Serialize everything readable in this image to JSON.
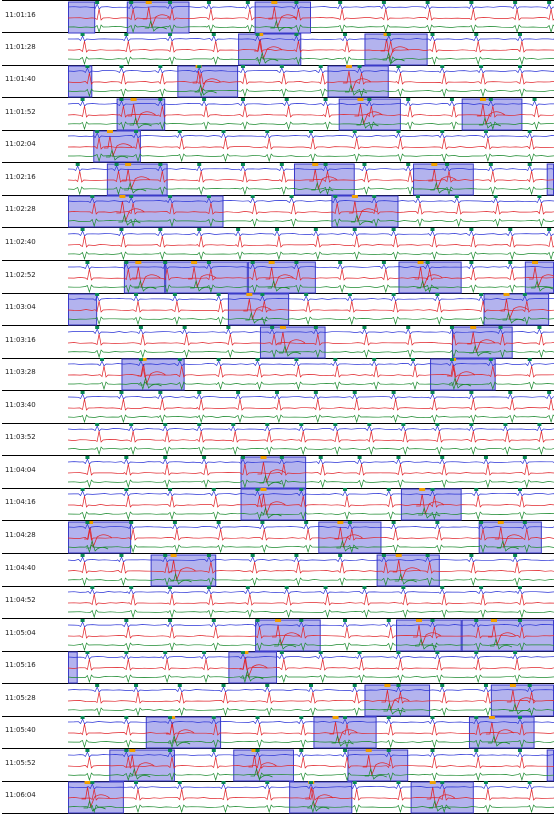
{
  "colors": {
    "lead_top": "#2a33d6",
    "lead_mid": "#e0262c",
    "lead_bottom": "#1b8a2e",
    "beat_marker": "#0a8a55",
    "event_marker": "#f2a200",
    "event_fill": "#b3b3ee",
    "event_border": "#3a3ac8",
    "grid_line": "#000000"
  },
  "icons": {
    "beat_marker": "beat-marker-icon",
    "event_marker": "event-marker-icon"
  },
  "strips": [
    {
      "time": "11:01:16",
      "events": [
        [
          0,
          0.056
        ],
        [
          0.121,
          0.25
        ],
        [
          0.384,
          0.5
        ]
      ],
      "beats": [
        0.06,
        0.13,
        0.21,
        0.29,
        0.37,
        0.47,
        0.56,
        0.65,
        0.74,
        0.83,
        0.92,
        0.99
      ]
    },
    {
      "time": "11:01:28",
      "events": [
        [
          0.35,
          0.48
        ],
        [
          0.61,
          0.74
        ]
      ],
      "beats": [
        0.03,
        0.12,
        0.21,
        0.3,
        0.39,
        0.47,
        0.57,
        0.66,
        0.75,
        0.84,
        0.93
      ]
    },
    {
      "time": "11:01:40",
      "events": [
        [
          0,
          0.05
        ],
        [
          0.225,
          0.35
        ],
        [
          0.534,
          0.66
        ]
      ],
      "beats": [
        0.04,
        0.11,
        0.19,
        0.27,
        0.36,
        0.44,
        0.52,
        0.6,
        0.68,
        0.77,
        0.85,
        0.93
      ]
    },
    {
      "time": "11:01:52",
      "events": [
        [
          0.1,
          0.2
        ],
        [
          0.557,
          0.685
        ],
        [
          0.81,
          0.935
        ]
      ],
      "beats": [
        0.03,
        0.11,
        0.19,
        0.28,
        0.36,
        0.45,
        0.53,
        0.62,
        0.7,
        0.79,
        0.87,
        0.96
      ]
    },
    {
      "time": "11:02:04",
      "events": [
        [
          0.052,
          0.15
        ]
      ],
      "beats": [
        0.06,
        0.14,
        0.23,
        0.32,
        0.41,
        0.5,
        0.59,
        0.68,
        0.77,
        0.86,
        0.95
      ]
    },
    {
      "time": "11:02:16",
      "events": [
        [
          0.08,
          0.205
        ],
        [
          0.465,
          0.59
        ],
        [
          0.71,
          0.835
        ],
        [
          0.985,
          1
        ]
      ],
      "beats": [
        0.02,
        0.1,
        0.19,
        0.27,
        0.36,
        0.44,
        0.53,
        0.61,
        0.7,
        0.78,
        0.87,
        0.95
      ]
    },
    {
      "time": "11:02:28",
      "events": [
        [
          0,
          0.32
        ],
        [
          0.542,
          0.68
        ]
      ],
      "beats": [
        0.05,
        0.13,
        0.21,
        0.29,
        0.38,
        0.46,
        0.55,
        0.63,
        0.72,
        0.8,
        0.88,
        0.97
      ]
    },
    {
      "time": "11:02:40",
      "events": [],
      "beats": [
        0.03,
        0.11,
        0.19,
        0.27,
        0.35,
        0.43,
        0.51,
        0.59,
        0.67,
        0.75,
        0.83,
        0.91,
        0.99
      ]
    },
    {
      "time": "11:02:52",
      "events": [
        [
          0.115,
          0.2
        ],
        [
          0.2,
          0.37
        ],
        [
          0.37,
          0.51
        ],
        [
          0.68,
          0.81
        ],
        [
          0.94,
          1
        ]
      ],
      "beats": [
        0.04,
        0.12,
        0.2,
        0.29,
        0.38,
        0.47,
        0.56,
        0.65,
        0.74,
        0.83,
        0.91
      ]
    },
    {
      "time": "11:03:04",
      "events": [
        [
          0,
          0.06
        ],
        [
          0.329,
          0.455
        ],
        [
          0.855,
          0.99
        ]
      ],
      "beats": [
        0.06,
        0.14,
        0.22,
        0.31,
        0.4,
        0.49,
        0.58,
        0.67,
        0.76,
        0.85,
        0.94
      ]
    },
    {
      "time": "11:03:16",
      "events": [
        [
          0.395,
          0.53
        ],
        [
          0.79,
          0.915
        ]
      ],
      "beats": [
        0.06,
        0.15,
        0.24,
        0.33,
        0.42,
        0.51,
        0.61,
        0.7,
        0.79,
        0.89,
        0.97
      ]
    },
    {
      "time": "11:03:28",
      "events": [
        [
          0.11,
          0.24
        ],
        [
          0.745,
          0.88
        ]
      ],
      "beats": [
        0.07,
        0.15,
        0.23,
        0.31,
        0.39,
        0.47,
        0.55,
        0.63,
        0.71,
        0.79,
        0.87,
        0.95
      ]
    },
    {
      "time": "11:03:40",
      "events": [],
      "beats": [
        0.03,
        0.11,
        0.19,
        0.27,
        0.35,
        0.43,
        0.51,
        0.59,
        0.67,
        0.75,
        0.83,
        0.91,
        0.99
      ]
    },
    {
      "time": "11:03:52",
      "events": [],
      "beats": [
        0.06,
        0.13,
        0.2,
        0.27,
        0.34,
        0.41,
        0.48,
        0.55,
        0.62,
        0.69,
        0.76,
        0.83,
        0.9,
        0.97
      ]
    },
    {
      "time": "11:04:04",
      "events": [
        [
          0.355,
          0.49
        ]
      ],
      "beats": [
        0.04,
        0.12,
        0.2,
        0.28,
        0.36,
        0.44,
        0.52,
        0.6,
        0.68,
        0.77,
        0.86,
        0.94
      ]
    },
    {
      "time": "11:04:16",
      "events": [
        [
          0.355,
          0.49
        ],
        [
          0.685,
          0.81
        ]
      ],
      "beats": [
        0.03,
        0.12,
        0.21,
        0.3,
        0.39,
        0.48,
        0.57,
        0.66,
        0.75,
        0.84,
        0.93
      ]
    },
    {
      "time": "11:04:28",
      "events": [
        [
          0,
          0.13
        ],
        [
          0.515,
          0.645
        ],
        [
          0.845,
          0.975
        ]
      ],
      "beats": [
        0.04,
        0.13,
        0.22,
        0.31,
        0.4,
        0.49,
        0.58,
        0.67,
        0.76,
        0.85,
        0.94
      ]
    },
    {
      "time": "11:04:40",
      "events": [
        [
          0.17,
          0.305
        ],
        [
          0.635,
          0.765
        ]
      ],
      "beats": [
        0.03,
        0.11,
        0.2,
        0.29,
        0.38,
        0.47,
        0.56,
        0.65,
        0.74,
        0.83,
        0.92
      ]
    },
    {
      "time": "11:04:52",
      "events": [],
      "beats": [
        0.05,
        0.13,
        0.21,
        0.29,
        0.37,
        0.45,
        0.53,
        0.61,
        0.69,
        0.77,
        0.85,
        0.93
      ]
    },
    {
      "time": "11:05:04",
      "events": [
        [
          0.385,
          0.52
        ],
        [
          0.675,
          0.81
        ],
        [
          0.81,
          1
        ]
      ],
      "beats": [
        0.03,
        0.12,
        0.21,
        0.3,
        0.39,
        0.48,
        0.57,
        0.66,
        0.75,
        0.84,
        0.93
      ]
    },
    {
      "time": "11:05:16",
      "events": [
        [
          0,
          0.02
        ],
        [
          0.33,
          0.43
        ]
      ],
      "beats": [
        0.04,
        0.12,
        0.2,
        0.28,
        0.36,
        0.44,
        0.52,
        0.6,
        0.68,
        0.76,
        0.84,
        0.92
      ]
    },
    {
      "time": "11:05:28",
      "events": [
        [
          0.61,
          0.745
        ],
        [
          0.87,
          1
        ]
      ],
      "beats": [
        0.06,
        0.14,
        0.23,
        0.32,
        0.41,
        0.5,
        0.59,
        0.68,
        0.77,
        0.86,
        0.95
      ]
    },
    {
      "time": "11:05:40",
      "events": [
        [
          0.16,
          0.315
        ],
        [
          0.505,
          0.635
        ],
        [
          0.825,
          0.96
        ]
      ],
      "beats": [
        0.03,
        0.12,
        0.21,
        0.3,
        0.39,
        0.48,
        0.57,
        0.66,
        0.75,
        0.84,
        0.93
      ]
    },
    {
      "time": "11:05:52",
      "events": [
        [
          0.085,
          0.22
        ],
        [
          0.34,
          0.465
        ],
        [
          0.575,
          0.7
        ],
        [
          0.985,
          1
        ]
      ],
      "beats": [
        0.04,
        0.12,
        0.21,
        0.3,
        0.39,
        0.48,
        0.57,
        0.66,
        0.75,
        0.84,
        0.93
      ]
    },
    {
      "time": "11:06:04",
      "events": [
        [
          0,
          0.115
        ],
        [
          0.455,
          0.585
        ],
        [
          0.705,
          0.835
        ]
      ],
      "beats": [
        0.05,
        0.14,
        0.23,
        0.32,
        0.41,
        0.5,
        0.59,
        0.68,
        0.77,
        0.86,
        0.95
      ]
    }
  ]
}
